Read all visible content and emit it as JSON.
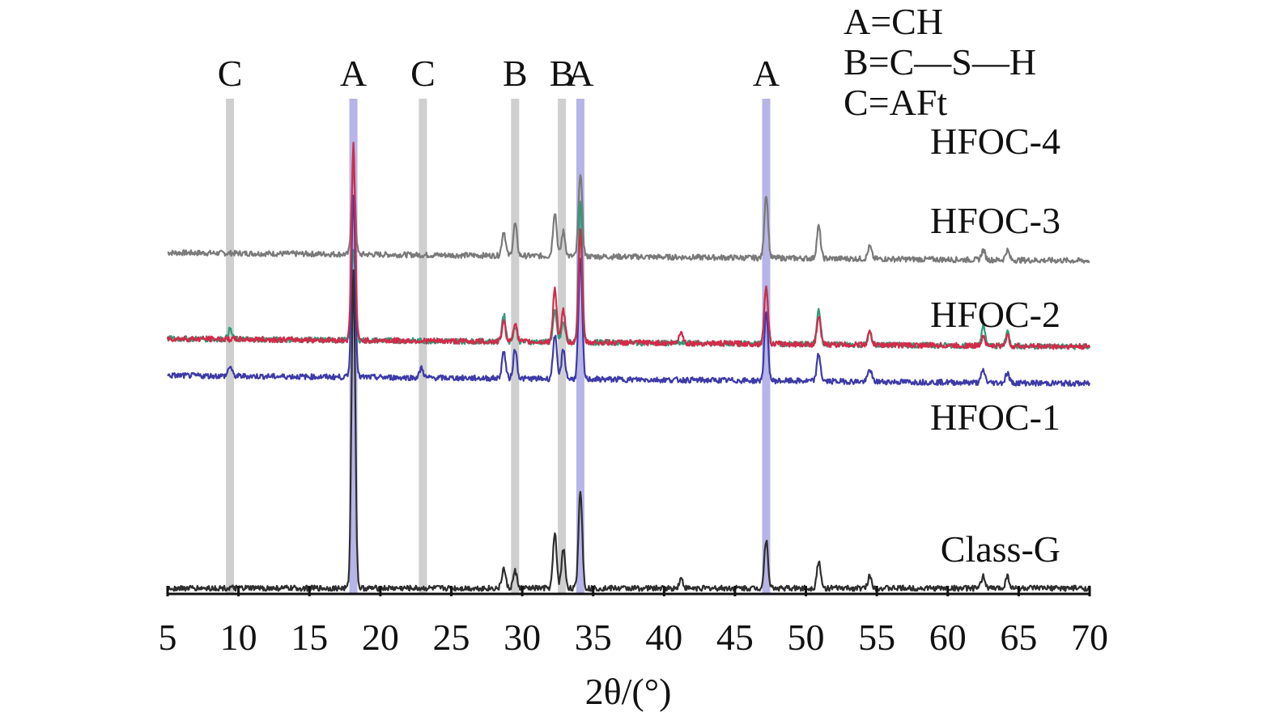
{
  "chart_data": {
    "type": "line",
    "title": "",
    "xlabel": "2θ/(°)",
    "ylabel": "",
    "xlim": [
      5,
      70
    ],
    "xticks": [
      5,
      10,
      15,
      20,
      25,
      30,
      35,
      40,
      45,
      50,
      55,
      60,
      65,
      70
    ],
    "grid": false,
    "legend": {
      "position": "top-right",
      "entries": [
        "A=CH",
        "B=C—S—H",
        "C=AFt"
      ]
    },
    "phase_markers": [
      {
        "label": "C",
        "x": 9.4,
        "color": "#a8a8a8"
      },
      {
        "label": "A",
        "x": 18.1,
        "color": "#7b77d6"
      },
      {
        "label": "C",
        "x": 23.0,
        "color": "#a8a8a8"
      },
      {
        "label": "B",
        "x": 29.5,
        "color": "#a8a8a8"
      },
      {
        "label": "B",
        "x": 32.8,
        "color": "#a8a8a8"
      },
      {
        "label": "A",
        "x": 34.1,
        "color": "#7b77d6"
      },
      {
        "label": "A",
        "x": 47.2,
        "color": "#7b77d6"
      }
    ],
    "series": [
      {
        "name": "HFOC-4",
        "color": "#7a7a7a",
        "baseline": [
          0.0,
          27.0
        ],
        "peaks": [
          {
            "x": 18.1,
            "h": 7.0
          },
          {
            "x": 28.7,
            "h": 2.0
          },
          {
            "x": 29.5,
            "h": 2.6
          },
          {
            "x": 32.3,
            "h": 3.6
          },
          {
            "x": 32.9,
            "h": 2.0
          },
          {
            "x": 34.1,
            "h": 6.8
          },
          {
            "x": 47.2,
            "h": 5.2
          },
          {
            "x": 50.9,
            "h": 2.6
          },
          {
            "x": 54.5,
            "h": 1.0
          },
          {
            "x": 62.5,
            "h": 0.8
          },
          {
            "x": 64.2,
            "h": 0.8
          }
        ]
      },
      {
        "name": "HFOC-3",
        "color": "#2e9b78",
        "baseline": [
          0.0,
          20.0
        ],
        "peaks": [
          {
            "x": 9.4,
            "h": 0.8
          },
          {
            "x": 18.1,
            "h": 7.5
          },
          {
            "x": 28.7,
            "h": 2.2
          },
          {
            "x": 29.5,
            "h": 1.2
          },
          {
            "x": 32.3,
            "h": 2.4
          },
          {
            "x": 32.9,
            "h": 1.6
          },
          {
            "x": 34.1,
            "h": 11.5
          },
          {
            "x": 47.2,
            "h": 4.8
          },
          {
            "x": 50.9,
            "h": 3.0
          },
          {
            "x": 54.5,
            "h": 1.0
          },
          {
            "x": 62.5,
            "h": 1.6
          },
          {
            "x": 64.2,
            "h": 1.2
          }
        ]
      },
      {
        "name": "HFOC-2",
        "color": "#3d3aa8",
        "baseline": [
          0.0,
          17.0
        ],
        "peaks": [
          {
            "x": 9.4,
            "h": 0.8
          },
          {
            "x": 18.1,
            "h": 15.0
          },
          {
            "x": 22.9,
            "h": 0.8
          },
          {
            "x": 28.7,
            "h": 2.2
          },
          {
            "x": 29.5,
            "h": 2.4
          },
          {
            "x": 32.3,
            "h": 3.6
          },
          {
            "x": 32.9,
            "h": 2.4
          },
          {
            "x": 34.1,
            "h": 9.8
          },
          {
            "x": 47.2,
            "h": 5.6
          },
          {
            "x": 50.9,
            "h": 2.2
          },
          {
            "x": 54.5,
            "h": 1.0
          },
          {
            "x": 62.5,
            "h": 1.0
          },
          {
            "x": 64.2,
            "h": 0.8
          }
        ]
      },
      {
        "name": "HFOC-1",
        "color": "#d42a4a",
        "baseline": [
          0.0,
          20.0
        ],
        "peaks": [
          {
            "x": 18.1,
            "h": 16.0
          },
          {
            "x": 28.7,
            "h": 1.6
          },
          {
            "x": 29.5,
            "h": 1.6
          },
          {
            "x": 32.3,
            "h": 4.4
          },
          {
            "x": 32.9,
            "h": 2.6
          },
          {
            "x": 34.1,
            "h": 9.0
          },
          {
            "x": 41.2,
            "h": 1.0
          },
          {
            "x": 47.2,
            "h": 4.6
          },
          {
            "x": 50.9,
            "h": 2.2
          },
          {
            "x": 54.5,
            "h": 1.0
          },
          {
            "x": 62.5,
            "h": 0.8
          },
          {
            "x": 64.2,
            "h": 0.8
          }
        ]
      },
      {
        "name": "Class-G",
        "color": "#2e2e2e",
        "baseline": [
          0.0,
          0.0
        ],
        "peaks": [
          {
            "x": 18.1,
            "h": 26.0
          },
          {
            "x": 28.7,
            "h": 1.6
          },
          {
            "x": 29.5,
            "h": 1.4
          },
          {
            "x": 32.3,
            "h": 4.4
          },
          {
            "x": 32.9,
            "h": 3.2
          },
          {
            "x": 34.1,
            "h": 8.0
          },
          {
            "x": 41.2,
            "h": 0.8
          },
          {
            "x": 47.2,
            "h": 4.0
          },
          {
            "x": 50.9,
            "h": 2.2
          },
          {
            "x": 54.5,
            "h": 1.0
          },
          {
            "x": 62.5,
            "h": 1.0
          },
          {
            "x": 64.2,
            "h": 1.0
          }
        ]
      }
    ]
  }
}
